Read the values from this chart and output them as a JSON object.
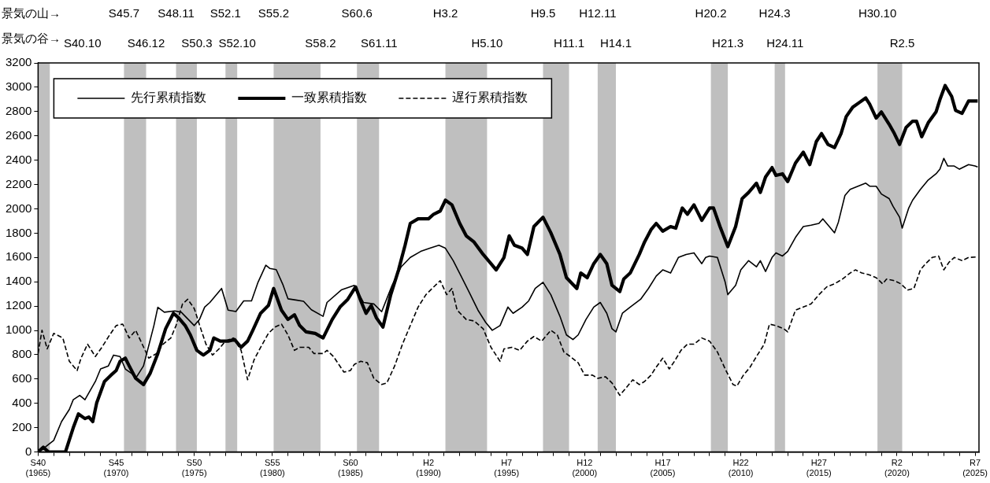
{
  "chart_data": {
    "type": "line",
    "legend": "top",
    "marker": "none",
    "annotations": [
      "景気の山→",
      "景気の谷→",
      "S45.7",
      "S48.11",
      "S52.1",
      "S55.2",
      "S60.6",
      "H3.2",
      "H9.5",
      "H12.11",
      "H20.2",
      "H24.3",
      "H30.10",
      "S40.10",
      "S46.12",
      "S50.3",
      "S52.10",
      "S58.2",
      "S61.11",
      "H5.10",
      "H11.1",
      "H14.1",
      "H21.3",
      "H24.11",
      "R2.5"
    ],
    "bands": [
      {
        "axis": "x",
        "from": "1965-01",
        "to": "1965-10",
        "color": "#bfbfbf"
      },
      {
        "axis": "x",
        "from": "1970-07",
        "to": "1971-12",
        "color": "#bfbfbf"
      },
      {
        "axis": "x",
        "from": "1973-11",
        "to": "1975-03",
        "color": "#bfbfbf"
      },
      {
        "axis": "x",
        "from": "1977-01",
        "to": "1977-10",
        "color": "#bfbfbf"
      },
      {
        "axis": "x",
        "from": "1980-02",
        "to": "1983-02",
        "color": "#bfbfbf"
      },
      {
        "axis": "x",
        "from": "1985-06",
        "to": "1986-11",
        "color": "#bfbfbf"
      },
      {
        "axis": "x",
        "from": "1991-02",
        "to": "1993-10",
        "color": "#bfbfbf"
      },
      {
        "axis": "x",
        "from": "1997-05",
        "to": "1999-01",
        "color": "#bfbfbf"
      },
      {
        "axis": "x",
        "from": "2000-11",
        "to": "2002-01",
        "color": "#bfbfbf"
      },
      {
        "axis": "x",
        "from": "2008-02",
        "to": "2009-03",
        "color": "#bfbfbf"
      },
      {
        "axis": "x",
        "from": "2012-03",
        "to": "2012-11",
        "color": "#bfbfbf"
      },
      {
        "axis": "x",
        "from": "2018-10",
        "to": "2020-05",
        "color": "#bfbfbf"
      }
    ],
    "xlim": [
      "1965-01",
      "2025-04"
    ],
    "xticks": [
      {
        "value": "1965-01",
        "label": "S40\n(1965)"
      },
      {
        "value": "1966-01",
        "label": null
      },
      {
        "value": "1967-01",
        "label": null
      },
      {
        "value": "1968-01",
        "label": null
      },
      {
        "value": "1969-01",
        "label": null
      },
      {
        "value": "1970-01",
        "label": "S45\n(1970)"
      },
      {
        "value": "1971-01",
        "label": null
      },
      {
        "value": "1972-01",
        "label": null
      },
      {
        "value": "1973-01",
        "label": null
      },
      {
        "value": "1974-01",
        "label": null
      },
      {
        "value": "1975-01",
        "label": "S50\n(1975)"
      },
      {
        "value": "1976-01",
        "label": null
      },
      {
        "value": "1977-01",
        "label": null
      },
      {
        "value": "1978-01",
        "label": null
      },
      {
        "value": "1979-01",
        "label": null
      },
      {
        "value": "1980-01",
        "label": "S55\n(1980)"
      },
      {
        "value": "1981-01",
        "label": null
      },
      {
        "value": "1982-01",
        "label": null
      },
      {
        "value": "1983-01",
        "label": null
      },
      {
        "value": "1984-01",
        "label": null
      },
      {
        "value": "1985-01",
        "label": "S60\n(1985)"
      },
      {
        "value": "1986-01",
        "label": null
      },
      {
        "value": "1987-01",
        "label": null
      },
      {
        "value": "1988-01",
        "label": null
      },
      {
        "value": "1989-01",
        "label": null
      },
      {
        "value": "1990-01",
        "label": "H2\n(1990)"
      },
      {
        "value": "1991-01",
        "label": null
      },
      {
        "value": "1992-01",
        "label": null
      },
      {
        "value": "1993-01",
        "label": null
      },
      {
        "value": "1994-01",
        "label": null
      },
      {
        "value": "1995-01",
        "label": "H7\n(1995)"
      },
      {
        "value": "1996-01",
        "label": null
      },
      {
        "value": "1997-01",
        "label": null
      },
      {
        "value": "1998-01",
        "label": null
      },
      {
        "value": "1999-01",
        "label": null
      },
      {
        "value": "2000-01",
        "label": "H12\n(2000)"
      },
      {
        "value": "2001-01",
        "label": null
      },
      {
        "value": "2002-01",
        "label": null
      },
      {
        "value": "2003-01",
        "label": null
      },
      {
        "value": "2004-01",
        "label": null
      },
      {
        "value": "2005-01",
        "label": "H17\n(2005)"
      },
      {
        "value": "2006-01",
        "label": null
      },
      {
        "value": "2007-01",
        "label": null
      },
      {
        "value": "2008-01",
        "label": null
      },
      {
        "value": "2009-01",
        "label": null
      },
      {
        "value": "2010-01",
        "label": "H22\n(2010)"
      },
      {
        "value": "2011-01",
        "label": null
      },
      {
        "value": "2012-01",
        "label": null
      },
      {
        "value": "2013-01",
        "label": null
      },
      {
        "value": "2014-01",
        "label": null
      },
      {
        "value": "2015-01",
        "label": "H27\n(2015)"
      },
      {
        "value": "2016-01",
        "label": null
      },
      {
        "value": "2017-01",
        "label": null
      },
      {
        "value": "2018-01",
        "label": null
      },
      {
        "value": "2019-01",
        "label": null
      },
      {
        "value": "2020-01",
        "label": "R2\n(2020)"
      },
      {
        "value": "2021-01",
        "label": null
      },
      {
        "value": "2022-01",
        "label": null
      },
      {
        "value": "2023-01",
        "label": null
      },
      {
        "value": "2024-01",
        "label": null
      },
      {
        "value": "2025-01",
        "label": "R7\n(2025)"
      }
    ],
    "ylim": [
      0,
      3200
    ],
    "yticks": [
      0,
      200,
      400,
      600,
      800,
      1000,
      1200,
      1400,
      1600,
      1800,
      2000,
      2200,
      2400,
      2600,
      2800,
      3000,
      3200
    ],
    "series": [
      {
        "name": "先行累積指数",
        "color": "#000000",
        "line_style": "solid",
        "x": [
          "1965-01",
          "1965-07",
          "1966-01",
          "1966-07",
          "1967-01",
          "1967-04",
          "1967-09",
          "1968-01",
          "1968-09",
          "1969-01",
          "1969-07",
          "1969-11",
          "1970-04",
          "1970-08",
          "1971-01",
          "1971-04",
          "1971-10",
          "1972-06",
          "1972-09",
          "1973-02",
          "1973-10",
          "1974-03",
          "1975-01",
          "1975-05",
          "1975-09",
          "1976-01",
          "1976-10",
          "1977-03",
          "1977-09",
          "1978-03",
          "1978-09",
          "1979-02",
          "1979-08",
          "1979-11",
          "1980-04",
          "1980-09",
          "1981-01",
          "1981-07",
          "1982-01",
          "1982-07",
          "1983-04",
          "1983-07",
          "1984-06",
          "1985-04",
          "1985-11",
          "1986-07",
          "1987-01",
          "1987-09",
          "1988-04",
          "1988-11",
          "1989-07",
          "1990-02",
          "1990-09",
          "1991-02",
          "1991-08",
          "1992-02",
          "1992-08",
          "1993-03",
          "1993-09",
          "1994-02",
          "1994-08",
          "1995-02",
          "1995-06",
          "1996-01",
          "1996-06",
          "1996-11",
          "1997-05",
          "1997-11",
          "1998-06",
          "1998-11",
          "1999-04",
          "1999-08",
          "2000-02",
          "2000-08",
          "2001-01",
          "2001-06",
          "2001-10",
          "2002-01",
          "2002-06",
          "2002-12",
          "2003-08",
          "2004-02",
          "2004-08",
          "2005-01",
          "2005-07",
          "2006-01",
          "2006-07",
          "2007-01",
          "2007-07",
          "2007-10",
          "2008-01",
          "2008-07",
          "2009-01",
          "2009-03",
          "2009-09",
          "2010-01",
          "2010-07",
          "2011-01",
          "2011-04",
          "2011-08",
          "2012-01",
          "2012-04",
          "2012-09",
          "2013-01",
          "2013-07",
          "2014-01",
          "2014-07",
          "2015-01",
          "2015-04",
          "2015-09",
          "2016-01",
          "2016-04",
          "2016-09",
          "2017-01",
          "2017-07",
          "2018-01",
          "2018-04",
          "2018-09",
          "2019-01",
          "2019-07",
          "2019-10",
          "2020-03",
          "2020-05",
          "2020-10",
          "2021-01",
          "2021-07",
          "2022-01",
          "2022-07",
          "2022-10",
          "2023-01",
          "2023-04",
          "2023-09",
          "2024-01",
          "2024-08",
          "2025-01",
          "2025-03"
        ],
        "values": [
          0,
          45,
          95,
          250,
          350,
          430,
          466,
          430,
          580,
          683,
          708,
          797,
          785,
          683,
          645,
          606,
          708,
          1040,
          1190,
          1150,
          1160,
          1150,
          1040,
          1090,
          1192,
          1230,
          1345,
          1167,
          1155,
          1243,
          1243,
          1396,
          1536,
          1510,
          1500,
          1380,
          1260,
          1250,
          1240,
          1170,
          1116,
          1230,
          1333,
          1370,
          1230,
          1218,
          1154,
          1370,
          1523,
          1600,
          1650,
          1676,
          1700,
          1676,
          1574,
          1447,
          1320,
          1167,
          1065,
          1001,
          1040,
          1192,
          1141,
          1192,
          1243,
          1345,
          1396,
          1294,
          1116,
          963,
          925,
          963,
          1090,
          1192,
          1230,
          1141,
          1014,
          988,
          1141,
          1192,
          1256,
          1345,
          1447,
          1498,
          1472,
          1600,
          1625,
          1638,
          1549,
          1600,
          1612,
          1600,
          1396,
          1294,
          1370,
          1498,
          1574,
          1523,
          1574,
          1485,
          1600,
          1638,
          1612,
          1650,
          1765,
          1854,
          1866,
          1880,
          1918,
          1854,
          1803,
          1892,
          2110,
          2160,
          2186,
          2211,
          2186,
          2186,
          2122,
          2084,
          2020,
          1931,
          1841,
          2006,
          2071,
          2160,
          2237,
          2288,
          2326,
          2415,
          2352,
          2352,
          2326,
          2364,
          2352,
          2344
        ]
      },
      {
        "name": "一致累積指数",
        "color": "#000000",
        "line_style": "solid",
        "x": [
          "1965-01",
          "1965-05",
          "1965-09",
          "1966-10",
          "1967-04",
          "1967-08",
          "1968-01",
          "1968-04",
          "1968-07",
          "1968-10",
          "1969-04",
          "1969-09",
          "1970-01",
          "1970-04",
          "1970-08",
          "1970-11",
          "1971-04",
          "1971-10",
          "1972-03",
          "1972-09",
          "1973-03",
          "1973-09",
          "1974-01",
          "1974-06",
          "1974-10",
          "1975-03",
          "1975-08",
          "1976-01",
          "1976-04",
          "1976-09",
          "1977-03",
          "1977-08",
          "1978-01",
          "1978-06",
          "1978-10",
          "1979-04",
          "1979-10",
          "1980-02",
          "1980-08",
          "1981-01",
          "1981-06",
          "1981-10",
          "1982-03",
          "1982-10",
          "1983-04",
          "1983-11",
          "1984-05",
          "1984-11",
          "1985-05",
          "1985-09",
          "1986-01",
          "1986-05",
          "1986-09",
          "1987-02",
          "1987-08",
          "1988-02",
          "1988-07",
          "1988-11",
          "1989-05",
          "1990-01",
          "1990-05",
          "1990-10",
          "1991-02",
          "1991-07",
          "1992-01",
          "1992-06",
          "1992-12",
          "1993-07",
          "1994-01",
          "1994-05",
          "1994-11",
          "1995-03",
          "1995-07",
          "1996-01",
          "1996-05",
          "1996-10",
          "1997-05",
          "1997-11",
          "1998-06",
          "1998-11",
          "1999-07",
          "1999-10",
          "2000-03",
          "2000-08",
          "2001-01",
          "2001-06",
          "2001-10",
          "2002-04",
          "2002-07",
          "2002-12",
          "2003-07",
          "2003-11",
          "2004-04",
          "2004-08",
          "2005-01",
          "2005-07",
          "2005-11",
          "2006-04",
          "2006-08",
          "2007-01",
          "2007-07",
          "2008-01",
          "2008-04",
          "2008-09",
          "2009-03",
          "2009-09",
          "2010-02",
          "2010-07",
          "2011-01",
          "2011-04",
          "2011-08",
          "2012-01",
          "2012-04",
          "2012-09",
          "2013-01",
          "2013-07",
          "2014-01",
          "2014-06",
          "2014-11",
          "2015-03",
          "2015-08",
          "2016-01",
          "2016-06",
          "2016-10",
          "2017-03",
          "2017-08",
          "2018-01",
          "2018-04",
          "2018-09",
          "2019-01",
          "2019-07",
          "2019-11",
          "2020-03",
          "2020-08",
          "2021-01",
          "2021-04",
          "2021-08",
          "2022-01",
          "2022-07",
          "2022-10",
          "2023-02",
          "2023-07",
          "2023-10",
          "2024-03",
          "2024-08",
          "2025-03"
        ],
        "values": [
          0,
          40,
          0,
          0,
          199,
          313,
          275,
          288,
          250,
          403,
          580,
          632,
          670,
          746,
          772,
          708,
          606,
          555,
          645,
          810,
          1014,
          1141,
          1103,
          1040,
          963,
          836,
          797,
          836,
          938,
          912,
          912,
          925,
          861,
          912,
          1001,
          1141,
          1205,
          1345,
          1167,
          1090,
          1129,
          1040,
          988,
          975,
          938,
          1090,
          1192,
          1256,
          1358,
          1243,
          1141,
          1205,
          1103,
          1027,
          1294,
          1498,
          1701,
          1880,
          1918,
          1918,
          1956,
          1982,
          2071,
          2033,
          1880,
          1778,
          1727,
          1625,
          1549,
          1498,
          1600,
          1778,
          1701,
          1676,
          1625,
          1854,
          1931,
          1803,
          1625,
          1434,
          1345,
          1472,
          1434,
          1549,
          1625,
          1549,
          1371,
          1320,
          1422,
          1472,
          1625,
          1727,
          1829,
          1880,
          1816,
          1854,
          1841,
          2007,
          1956,
          2033,
          1905,
          2007,
          2007,
          1854,
          1689,
          1854,
          2084,
          2135,
          2211,
          2135,
          2262,
          2339,
          2275,
          2288,
          2224,
          2377,
          2466,
          2364,
          2553,
          2619,
          2530,
          2504,
          2619,
          2759,
          2836,
          2874,
          2912,
          2861,
          2746,
          2797,
          2695,
          2619,
          2530,
          2670,
          2721,
          2721,
          2593,
          2708,
          2797,
          2899,
          3014,
          2925,
          2810,
          2785,
          2887,
          2887
        ]
      },
      {
        "name": "遅行累積指数",
        "color": "#000000",
        "line_style": "dashed",
        "x": [
          "1965-01",
          "1965-04",
          "1965-08",
          "1966-01",
          "1966-08",
          "1967-01",
          "1967-04",
          "1967-07",
          "1967-10",
          "1968-03",
          "1968-09",
          "1969-02",
          "1969-08",
          "1970-01",
          "1970-06",
          "1970-11",
          "1971-04",
          "1971-09",
          "1972-02",
          "1972-08",
          "1973-01",
          "1973-07",
          "1973-11",
          "1974-04",
          "1974-08",
          "1975-01",
          "1975-06",
          "1975-10",
          "1976-03",
          "1976-08",
          "1977-01",
          "1977-07",
          "1978-01",
          "1978-06",
          "1978-11",
          "1979-04",
          "1979-10",
          "1980-03",
          "1980-08",
          "1981-01",
          "1981-06",
          "1981-10",
          "1982-05",
          "1982-09",
          "1983-04",
          "1983-07",
          "1983-12",
          "1984-08",
          "1985-01",
          "1985-04",
          "1985-09",
          "1986-02",
          "1986-07",
          "1987-01",
          "1987-05",
          "1987-11",
          "1988-05",
          "1988-11",
          "1989-05",
          "1989-11",
          "1990-05",
          "1990-10",
          "1991-03",
          "1991-07",
          "1991-11",
          "1992-06",
          "1992-12",
          "1993-07",
          "1994-01",
          "1994-08",
          "1994-11",
          "1995-05",
          "1995-11",
          "1996-05",
          "1996-10",
          "1997-04",
          "1997-11",
          "1998-04",
          "1998-09",
          "1999-02",
          "1999-08",
          "2000-01",
          "2000-07",
          "2000-11",
          "2001-05",
          "2001-10",
          "2002-04",
          "2002-08",
          "2003-02",
          "2003-07",
          "2003-11",
          "2004-04",
          "2004-07",
          "2005-01",
          "2005-06",
          "2005-10",
          "2006-03",
          "2006-08",
          "2007-01",
          "2007-07",
          "2008-01",
          "2008-07",
          "2009-01",
          "2009-07",
          "2009-10",
          "2010-03",
          "2010-08",
          "2011-01",
          "2011-07",
          "2011-11",
          "2012-04",
          "2012-10",
          "2013-01",
          "2013-07",
          "2014-01",
          "2014-07",
          "2015-01",
          "2015-07",
          "2016-01",
          "2016-07",
          "2017-01",
          "2017-05",
          "2017-10",
          "2018-03",
          "2018-09",
          "2019-02",
          "2019-05",
          "2019-11",
          "2020-04",
          "2020-09",
          "2021-02",
          "2021-07",
          "2021-11",
          "2022-04",
          "2022-09",
          "2023-01",
          "2023-05",
          "2023-09",
          "2024-03",
          "2024-08",
          "2025-03"
        ],
        "values": [
          810,
          1001,
          848,
          976,
          938,
          746,
          708,
          670,
          772,
          887,
          785,
          861,
          963,
          1040,
          1052,
          938,
          1001,
          887,
          772,
          810,
          887,
          938,
          1040,
          1218,
          1256,
          1180,
          1014,
          887,
          797,
          848,
          912,
          938,
          836,
          594,
          759,
          861,
          976,
          1027,
          1052,
          963,
          836,
          861,
          861,
          810,
          810,
          836,
          785,
          657,
          670,
          721,
          746,
          734,
          606,
          555,
          568,
          708,
          887,
          1040,
          1192,
          1294,
          1358,
          1409,
          1294,
          1345,
          1167,
          1090,
          1078,
          1014,
          861,
          746,
          848,
          861,
          836,
          912,
          950,
          912,
          1001,
          963,
          823,
          785,
          734,
          632,
          632,
          606,
          619,
          568,
          466,
          517,
          594,
          555,
          580,
          632,
          683,
          772,
          683,
          746,
          836,
          887,
          887,
          938,
          912,
          823,
          683,
          555,
          543,
          632,
          696,
          785,
          887,
          1052,
          1040,
          1014,
          988,
          1167,
          1192,
          1218,
          1294,
          1358,
          1383,
          1422,
          1472,
          1498,
          1472,
          1460,
          1434,
          1383,
          1422,
          1409,
          1383,
          1332,
          1345,
          1498,
          1549,
          1600,
          1612,
          1498,
          1561,
          1600,
          1574,
          1600,
          1605
        ]
      }
    ]
  }
}
